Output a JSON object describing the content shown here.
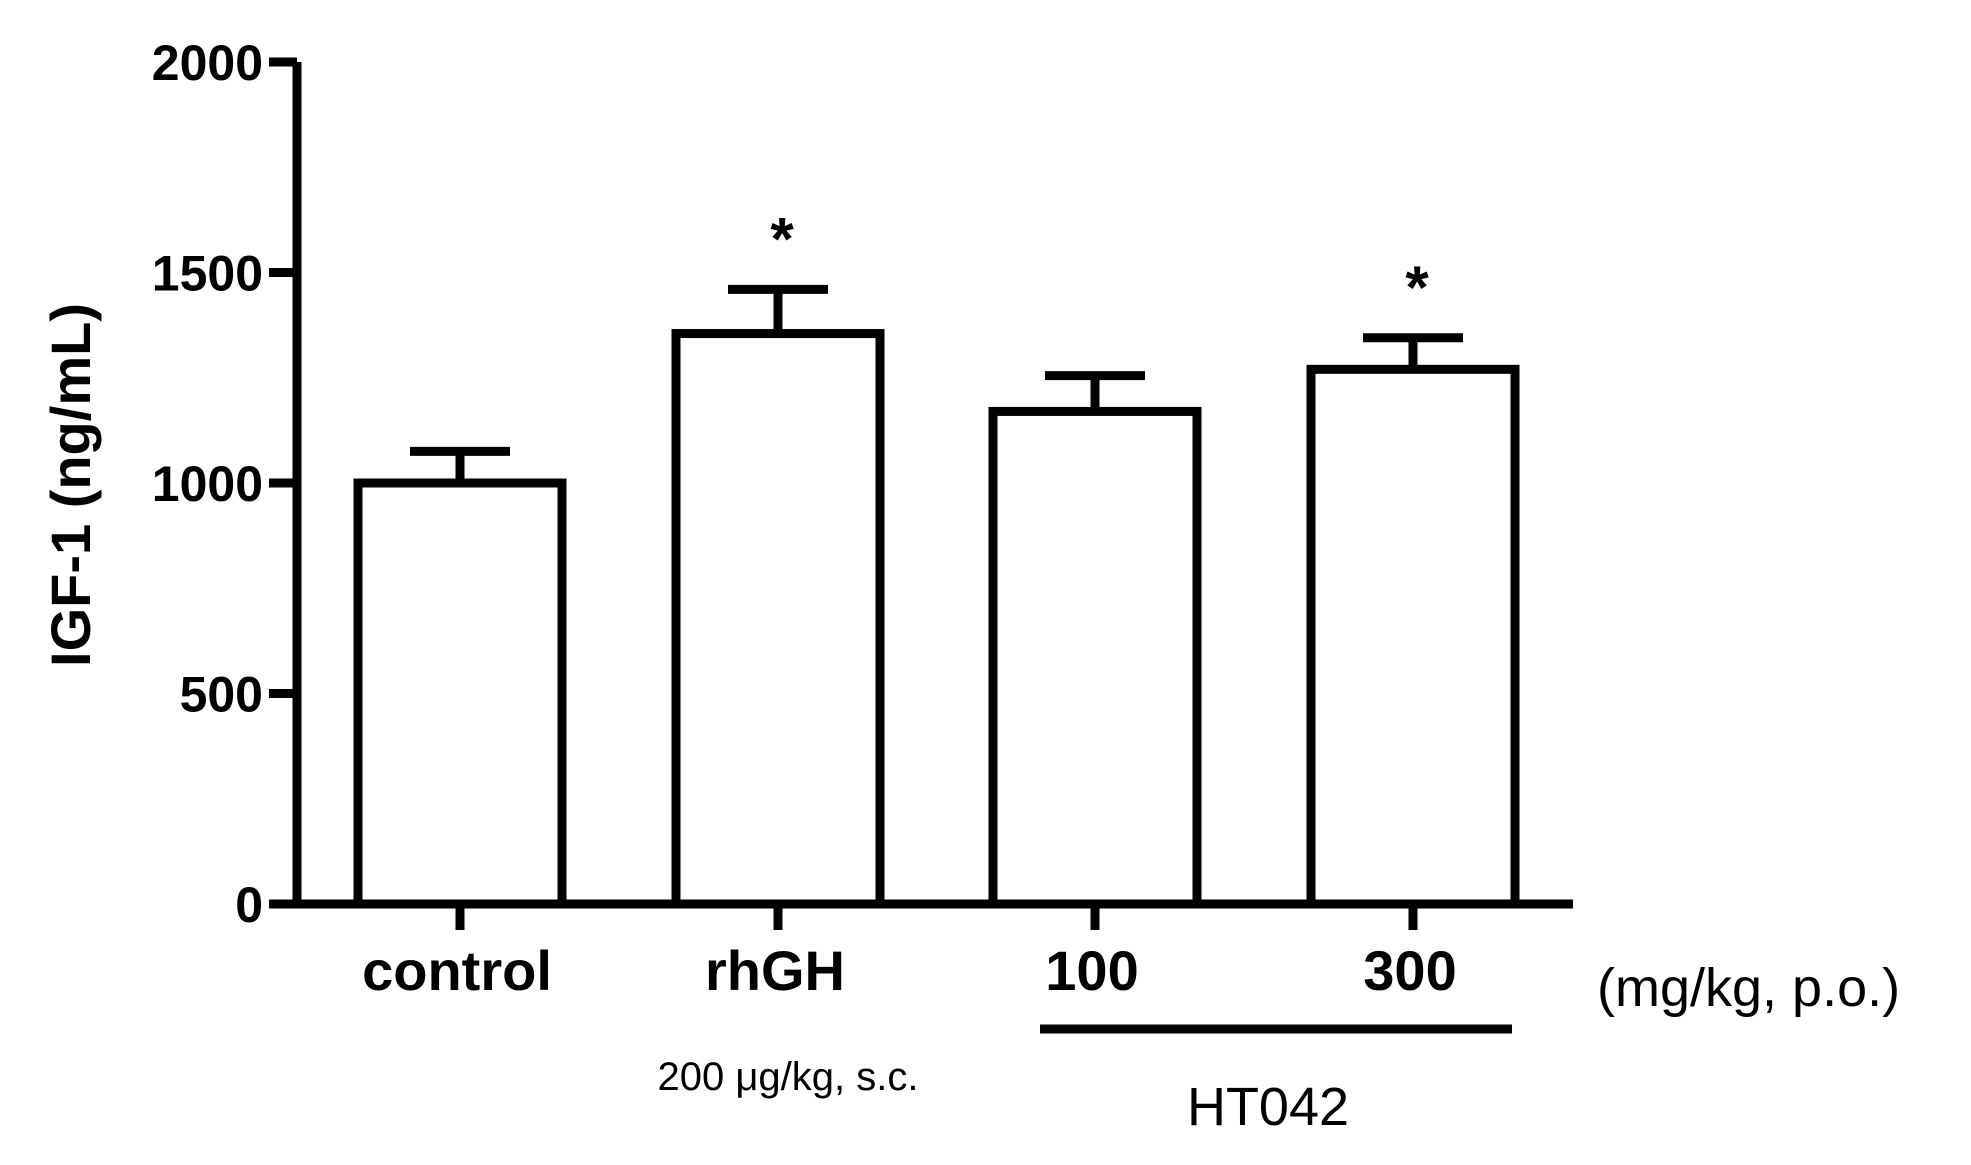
{
  "chart_data": {
    "type": "bar",
    "title": "",
    "xlabel": "",
    "ylabel": "IGF-1 (ng/mL)",
    "ylim": [
      0,
      2000
    ],
    "yticks": [
      "0",
      "500",
      "1000",
      "1500",
      "2000"
    ],
    "grid": false,
    "categories": [
      "control",
      "rhGH",
      "100",
      "300"
    ],
    "values": [
      1000,
      1355,
      1170,
      1270
    ],
    "errors": [
      75,
      105,
      85,
      75
    ],
    "significance": [
      "",
      "*",
      "",
      "*"
    ],
    "bar_fill": "#ffffff",
    "stroke_color": "#000000",
    "annotations": {
      "dose_unit": "(mg/kg, p.o.)",
      "rhgh_dose": "200 μg/kg, s.c.",
      "group_name": "HT042"
    }
  }
}
